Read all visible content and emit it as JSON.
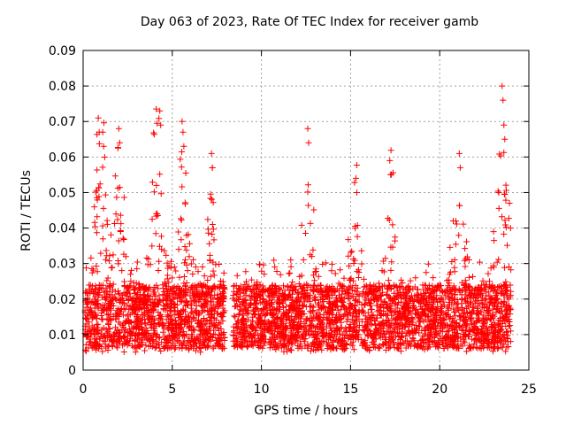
{
  "chart_data": {
    "type": "scatter",
    "title": "Day 063 of 2023, Rate Of TEC Index for receiver gamb",
    "xlabel": "GPS time / hours",
    "ylabel": "ROTI / TECUs",
    "xlim": [
      0,
      25
    ],
    "ylim": [
      0,
      0.09
    ],
    "x_ticks": [
      "0",
      "5",
      "10",
      "15",
      "20",
      "25"
    ],
    "y_ticks": [
      "0",
      "0.01",
      "0.02",
      "0.03",
      "0.04",
      "0.05",
      "0.06",
      "0.07",
      "0.08",
      "0.09"
    ],
    "grid": true,
    "marker": "+",
    "color": "#ff0000",
    "data_gaps_hours": [
      [
        7.95,
        8.4
      ],
      [
        15.5,
        15.6
      ]
    ],
    "peaks": [
      {
        "x": 0.85,
        "y": 0.071
      },
      {
        "x": 1.1,
        "y": 0.067
      },
      {
        "x": 2.0,
        "y": 0.068
      },
      {
        "x": 4.1,
        "y": 0.0735
      },
      {
        "x": 4.3,
        "y": 0.073
      },
      {
        "x": 5.6,
        "y": 0.067
      },
      {
        "x": 7.2,
        "y": 0.061
      },
      {
        "x": 12.6,
        "y": 0.068
      },
      {
        "x": 15.3,
        "y": 0.054
      },
      {
        "x": 17.2,
        "y": 0.059
      },
      {
        "x": 21.1,
        "y": 0.061
      },
      {
        "x": 23.5,
        "y": 0.08
      },
      {
        "x": 23.6,
        "y": 0.069
      }
    ],
    "typical_range": [
      0.005,
      0.035
    ]
  }
}
